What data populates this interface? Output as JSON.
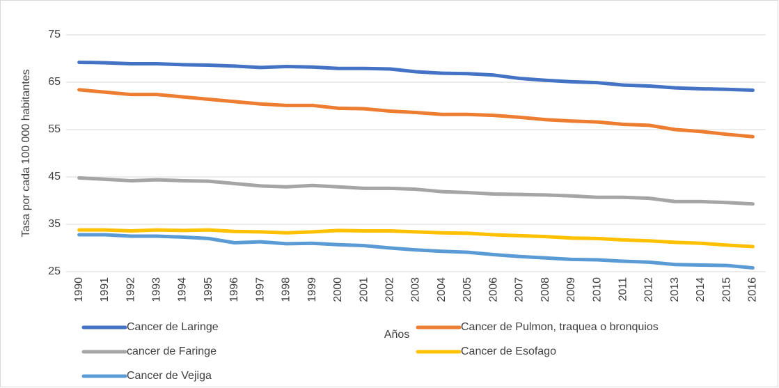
{
  "chart_data": {
    "type": "line",
    "x_label": "Años",
    "y_label": "Tasa por cada 100 000 habitantes",
    "categories": [
      "1990",
      "1991",
      "1992",
      "1993",
      "1994",
      "1995",
      "1996",
      "1997",
      "1998",
      "1999",
      "2000",
      "2001",
      "2002",
      "2003",
      "2004",
      "2005",
      "2006",
      "2007",
      "2008",
      "2009",
      "2010",
      "2011",
      "2012",
      "2013",
      "2014",
      "2015",
      "2016"
    ],
    "series": [
      {
        "name": "Cancer de Laringe",
        "color": "#4472c4",
        "values": [
          69.2,
          69.1,
          68.9,
          68.9,
          68.7,
          68.6,
          68.4,
          68.1,
          68.3,
          68.2,
          67.9,
          67.9,
          67.8,
          67.2,
          66.9,
          66.8,
          66.5,
          65.8,
          65.4,
          65.1,
          64.9,
          64.4,
          64.2,
          63.8,
          63.6,
          63.5,
          63.3
        ]
      },
      {
        "name": "Cancer de Pulmon, traquea o bronquios",
        "color": "#ed7d31",
        "values": [
          63.4,
          62.9,
          62.4,
          62.4,
          61.9,
          61.4,
          60.9,
          60.4,
          60.1,
          60.1,
          59.5,
          59.4,
          58.9,
          58.6,
          58.2,
          58.2,
          58.0,
          57.6,
          57.1,
          56.8,
          56.6,
          56.1,
          55.9,
          55.0,
          54.6,
          54.0,
          53.5
        ]
      },
      {
        "name": "cancer de Faringe",
        "color": "#a5a5a5",
        "values": [
          44.8,
          44.5,
          44.2,
          44.4,
          44.2,
          44.1,
          43.6,
          43.1,
          42.9,
          43.2,
          42.9,
          42.6,
          42.6,
          42.4,
          41.9,
          41.7,
          41.4,
          41.3,
          41.2,
          41.0,
          40.7,
          40.7,
          40.5,
          39.8,
          39.8,
          39.6,
          39.3
        ]
      },
      {
        "name": "Cancer de Esofago",
        "color": "#ffc000",
        "values": [
          33.8,
          33.8,
          33.6,
          33.8,
          33.7,
          33.8,
          33.5,
          33.4,
          33.2,
          33.4,
          33.7,
          33.6,
          33.6,
          33.4,
          33.2,
          33.1,
          32.8,
          32.6,
          32.4,
          32.1,
          32.0,
          31.7,
          31.5,
          31.2,
          31.0,
          30.6,
          30.3
        ]
      },
      {
        "name": "Cancer de Vejiga",
        "color": "#5b9bd5",
        "values": [
          32.8,
          32.8,
          32.5,
          32.5,
          32.3,
          32.0,
          31.1,
          31.3,
          30.9,
          31.0,
          30.7,
          30.5,
          30.0,
          29.6,
          29.3,
          29.1,
          28.6,
          28.2,
          27.9,
          27.6,
          27.5,
          27.2,
          27.0,
          26.5,
          26.4,
          26.3,
          25.8
        ]
      }
    ],
    "ylim": [
      25,
      75
    ],
    "yticks": [
      25,
      35,
      45,
      55,
      65,
      75
    ],
    "grid": true,
    "legend": "bottom"
  }
}
